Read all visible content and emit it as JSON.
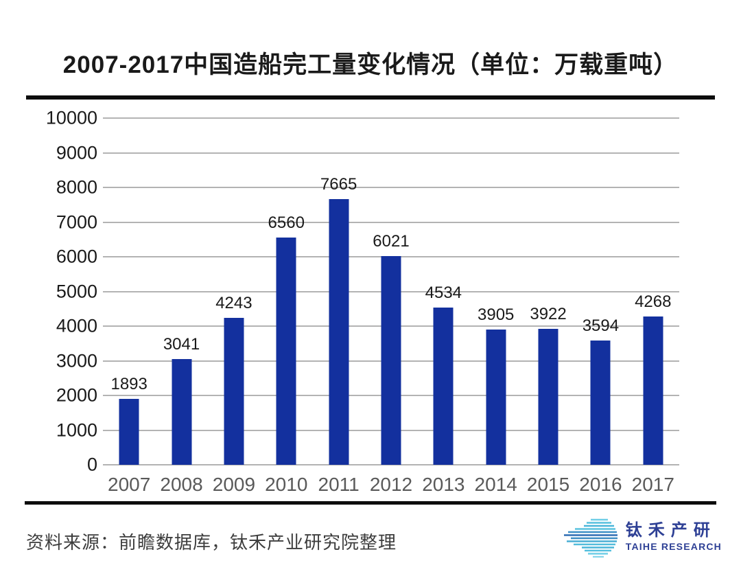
{
  "chart_data": {
    "type": "bar",
    "title": "2007-2017中国造船完工量变化情况（单位：万载重吨）",
    "unit": "万载重吨",
    "categories": [
      "2007",
      "2008",
      "2009",
      "2010",
      "2011",
      "2012",
      "2013",
      "2014",
      "2015",
      "2016",
      "2017"
    ],
    "values": [
      1893,
      3041,
      4243,
      6560,
      7665,
      6021,
      4534,
      3905,
      3922,
      3594,
      4268
    ],
    "ylim": [
      0,
      10000
    ],
    "yticks": [
      0,
      1000,
      2000,
      3000,
      4000,
      5000,
      6000,
      7000,
      8000,
      9000,
      10000
    ],
    "grid": true,
    "legend": "none",
    "bar_color": "#13309e",
    "gridline_color": "#b3b3b3"
  },
  "footer": {
    "source": "资料来源：前瞻数据库，钛禾产业研究院整理",
    "logo": {
      "cn": "钛禾产研",
      "en": "TAIHE RESEARCH",
      "color": "#2e4095",
      "icon": "striped-globe-icon"
    }
  }
}
